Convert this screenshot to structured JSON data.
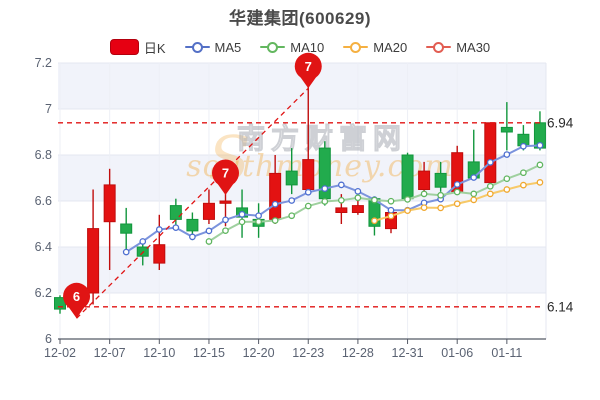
{
  "title": "华建集团(600629)",
  "legend": {
    "items": [
      {
        "label": "日K",
        "marker": "candle",
        "color": "#e60012",
        "border": "#b3000e"
      },
      {
        "label": "MA5",
        "marker": "line",
        "color": "#5470c6"
      },
      {
        "label": "MA10",
        "marker": "line",
        "color": "#63b75f"
      },
      {
        "label": "MA20",
        "marker": "line",
        "color": "#f5b041"
      },
      {
        "label": "MA30",
        "marker": "line",
        "color": "#e25d52"
      }
    ]
  },
  "watermark": {
    "brand": "南方财富网",
    "domain": "southmoney.com",
    "flourish": "S"
  },
  "chart_data": {
    "type": "candlestick",
    "title": "华建集团(600629)",
    "ylim": [
      6.0,
      7.2
    ],
    "y_ticks": [
      "7.2",
      "7",
      "6.8",
      "6.6",
      "6.4",
      "6.2",
      "6"
    ],
    "x_ticks": [
      {
        "label": "12-02",
        "index": 0
      },
      {
        "label": "12-07",
        "index": 3
      },
      {
        "label": "12-10",
        "index": 6
      },
      {
        "label": "12-15",
        "index": 9
      },
      {
        "label": "12-20",
        "index": 12
      },
      {
        "label": "12-23",
        "index": 15
      },
      {
        "label": "12-28",
        "index": 18
      },
      {
        "label": "12-31",
        "index": 21
      },
      {
        "label": "01-06",
        "index": 24
      },
      {
        "label": "01-11",
        "index": 27
      }
    ],
    "up_color": "#e31212",
    "up_border": "#c00d0d",
    "down_color": "#22ab4d",
    "down_border": "#11963c",
    "grid_band_color": "#f1f3fa",
    "candles": [
      {
        "date": "12-02",
        "o": 6.18,
        "c": 6.13,
        "h": 6.19,
        "l": 6.11
      },
      {
        "date": "12-03",
        "o": 6.16,
        "c": 6.15,
        "h": 6.17,
        "l": 6.14
      },
      {
        "date": "12-06",
        "o": 6.2,
        "c": 6.48,
        "h": 6.65,
        "l": 6.15
      },
      {
        "date": "12-07",
        "o": 6.51,
        "c": 6.67,
        "h": 6.74,
        "l": 6.3
      },
      {
        "date": "12-08",
        "o": 6.5,
        "c": 6.46,
        "h": 6.57,
        "l": 6.37
      },
      {
        "date": "12-09",
        "o": 6.4,
        "c": 6.36,
        "h": 6.42,
        "l": 6.32
      },
      {
        "date": "12-10",
        "o": 6.33,
        "c": 6.41,
        "h": 6.54,
        "l": 6.3
      },
      {
        "date": "12-13",
        "o": 6.58,
        "c": 6.52,
        "h": 6.61,
        "l": 6.49
      },
      {
        "date": "12-14",
        "o": 6.52,
        "c": 6.47,
        "h": 6.55,
        "l": 6.43
      },
      {
        "date": "12-15",
        "o": 6.52,
        "c": 6.59,
        "h": 6.65,
        "l": 6.5
      },
      {
        "date": "12-16",
        "o": 6.59,
        "c": 6.6,
        "h": 6.63,
        "l": 6.49
      },
      {
        "date": "12-17",
        "o": 6.57,
        "c": 6.53,
        "h": 6.65,
        "l": 6.44
      },
      {
        "date": "12-20",
        "o": 6.52,
        "c": 6.49,
        "h": 6.59,
        "l": 6.44
      },
      {
        "date": "12-21",
        "o": 6.52,
        "c": 6.72,
        "h": 6.8,
        "l": 6.5
      },
      {
        "date": "12-22",
        "o": 6.73,
        "c": 6.67,
        "h": 6.83,
        "l": 6.63
      },
      {
        "date": "12-23",
        "o": 6.65,
        "c": 6.78,
        "h": 7.1,
        "l": 6.64
      },
      {
        "date": "12-24",
        "o": 6.83,
        "c": 6.61,
        "h": 6.86,
        "l": 6.58
      },
      {
        "date": "12-27",
        "o": 6.55,
        "c": 6.57,
        "h": 6.63,
        "l": 6.5
      },
      {
        "date": "12-28",
        "o": 6.55,
        "c": 6.58,
        "h": 6.6,
        "l": 6.54
      },
      {
        "date": "12-29",
        "o": 6.61,
        "c": 6.49,
        "h": 6.62,
        "l": 6.45
      },
      {
        "date": "12-30",
        "o": 6.48,
        "c": 6.55,
        "h": 6.57,
        "l": 6.46
      },
      {
        "date": "12-31",
        "o": 6.8,
        "c": 6.61,
        "h": 6.81,
        "l": 6.6
      },
      {
        "date": "01-04",
        "o": 6.65,
        "c": 6.73,
        "h": 6.77,
        "l": 6.63
      },
      {
        "date": "01-05",
        "o": 6.72,
        "c": 6.66,
        "h": 6.77,
        "l": 6.64
      },
      {
        "date": "01-06",
        "o": 6.64,
        "c": 6.81,
        "h": 6.84,
        "l": 6.63
      },
      {
        "date": "01-07",
        "o": 6.77,
        "c": 6.7,
        "h": 6.91,
        "l": 6.69
      },
      {
        "date": "01-10",
        "o": 6.68,
        "c": 6.94,
        "h": 6.94,
        "l": 6.67
      },
      {
        "date": "01-11",
        "o": 6.92,
        "c": 6.9,
        "h": 7.03,
        "l": 6.82
      },
      {
        "date": "01-12",
        "o": 6.89,
        "c": 6.84,
        "h": 6.93,
        "l": 6.82
      },
      {
        "date": "01-13",
        "o": 6.94,
        "c": 6.83,
        "h": 6.99,
        "l": 6.82
      }
    ],
    "ma_series": [
      {
        "name": "MA5",
        "start": 4,
        "line_color": "#7b93dd",
        "marker_color": "#4d6ed0",
        "values": [
          6.378,
          6.424,
          6.476,
          6.484,
          6.444,
          6.47,
          6.518,
          6.542,
          6.536,
          6.586,
          6.602,
          6.638,
          6.654,
          6.67,
          6.642,
          6.606,
          6.56,
          6.56,
          6.592,
          6.608,
          6.672,
          6.702,
          6.768,
          6.802,
          6.838,
          6.842
        ]
      },
      {
        "name": "MA10",
        "start": 9,
        "line_color": "#9fd09f",
        "marker_color": "#5fb55f",
        "values": [
          6.424,
          6.471,
          6.509,
          6.51,
          6.515,
          6.536,
          6.578,
          6.598,
          6.603,
          6.614,
          6.604,
          6.599,
          6.607,
          6.631,
          6.625,
          6.639,
          6.631,
          6.664,
          6.697,
          6.723,
          6.757
        ]
      },
      {
        "name": "MA20",
        "start": 19,
        "line_color": "#f7c968",
        "marker_color": "#f0a830",
        "values": [
          6.514,
          6.535,
          6.558,
          6.571,
          6.57,
          6.588,
          6.605,
          6.631,
          6.65,
          6.669,
          6.681
        ]
      },
      {
        "name": "MA30",
        "start": 29,
        "line_color": "#e25d52",
        "marker_color": "#e25d52",
        "values": []
      }
    ],
    "markers": [
      {
        "label": "6",
        "index": 1,
        "price": 6.09,
        "color": "#e01414"
      },
      {
        "label": "7",
        "index": 10,
        "price": 6.626,
        "color": "#e01414"
      },
      {
        "label": "7",
        "index": 15,
        "price": 7.09,
        "color": "#e01414"
      }
    ],
    "trend_line": {
      "from_index": 1,
      "from_price": 6.09,
      "to_index": 15,
      "to_price": 7.09,
      "color": "#e01414"
    },
    "ref_lines": [
      {
        "price": 6.94,
        "label": "6.94"
      },
      {
        "price": 6.14,
        "label": "6.14"
      }
    ]
  }
}
